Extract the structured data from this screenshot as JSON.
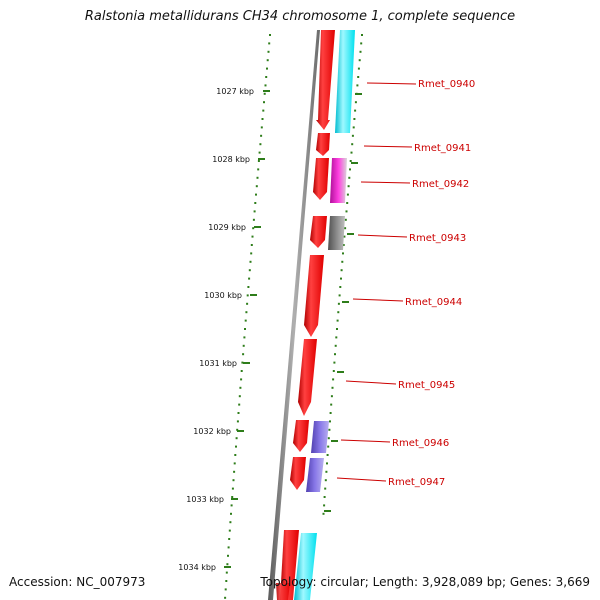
{
  "title": "Ralstonia metallidurans CH34 chromosome 1, complete sequence",
  "footer": {
    "accession": "Accession: NC_007973",
    "topology": "Topology: circular; Length: 3,928,089 bp; Genes: 3,669"
  },
  "scale": {
    "ticks": [
      "1027 kbp",
      "1028 kbp",
      "1029 kbp",
      "1030 kbp",
      "1031 kbp",
      "1032 kbp",
      "1033 kbp",
      "1034 kbp"
    ]
  },
  "genes": [
    {
      "label": "",
      "color": "#ff0000"
    },
    {
      "label": "Rmet_0940",
      "color": "#ff0000"
    },
    {
      "label": "Rmet_0941",
      "color": "#ff0000"
    },
    {
      "label": "Rmet_0942",
      "color": "#ff0000"
    },
    {
      "label": "Rmet_0943",
      "color": "#ff0000"
    },
    {
      "label": "Rmet_0944",
      "color": "#ff0000"
    },
    {
      "label": "Rmet_0945",
      "color": "#ff0000"
    },
    {
      "label": "Rmet_0946",
      "color": "#ff0000"
    },
    {
      "label": "Rmet_0947",
      "color": "#ff0000"
    },
    {
      "label": "",
      "color": "#ff0000"
    }
  ],
  "colors": {
    "backbone": "#7f7f7f",
    "gene": "#ff0000",
    "label": "#cc0000",
    "tick": "#2e7d1a",
    "cyan": "#00e5ee",
    "magenta": "#e020c0",
    "gray": "#707070",
    "purple": "#7060d0"
  }
}
